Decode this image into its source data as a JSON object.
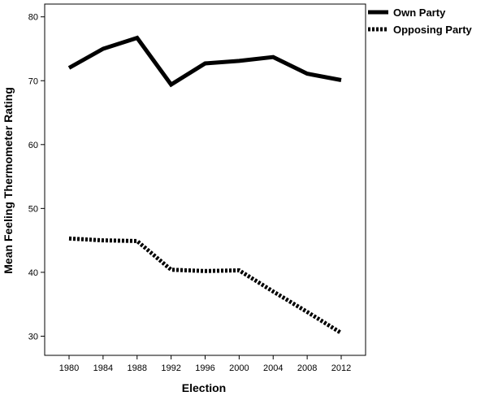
{
  "chart_data": {
    "type": "line",
    "xlabel": "Election",
    "ylabel": "Mean Feeling Thermometer Rating",
    "x": [
      1980,
      1984,
      1988,
      1992,
      1996,
      2000,
      2004,
      2008,
      2012
    ],
    "ylim": [
      27,
      82
    ],
    "yticks": [
      30,
      40,
      50,
      60,
      70,
      80
    ],
    "grid": false,
    "legend": "top-right",
    "series": [
      {
        "name": "Own Party",
        "style": "solid",
        "color": "#000000",
        "values": [
          72.0,
          75.0,
          76.7,
          69.4,
          72.7,
          73.1,
          73.7,
          71.1,
          70.1
        ]
      },
      {
        "name": "Opposing Party",
        "style": "dotted",
        "color": "#000000",
        "values": [
          45.3,
          45.0,
          44.9,
          40.4,
          40.2,
          40.3,
          37.0,
          33.8,
          30.5
        ]
      }
    ]
  }
}
